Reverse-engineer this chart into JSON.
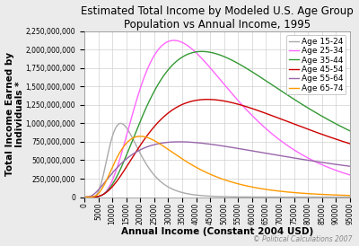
{
  "title_line1": "Estimated Total Income by Modeled U.S. Age Group",
  "title_line2": "Population vs Annual Income, 1995",
  "xlabel": "Annual Income (Constant 2004 USD)",
  "ylabel": "Total Income Earned by\nIndividuals *",
  "watermark": "© Political Calculations 2007",
  "x_max": 95000,
  "x_ticks": [
    0,
    5000,
    10000,
    15000,
    20000,
    25000,
    30000,
    35000,
    40000,
    45000,
    50000,
    55000,
    60000,
    65000,
    70000,
    75000,
    80000,
    85000,
    90000,
    95000
  ],
  "y_max": 2250000000,
  "y_ticks": [
    0,
    250000000,
    500000000,
    750000000,
    1000000000,
    1250000000,
    1500000000,
    1750000000,
    2000000000,
    2250000000
  ],
  "series": [
    {
      "label": "Age 15-24",
      "color": "#aaaaaa",
      "peak_x": 13000,
      "peak_y": 1000000000,
      "sigma": 0.42
    },
    {
      "label": "Age 25-34",
      "color": "#ff66ff",
      "peak_x": 32000,
      "peak_y": 2125000000,
      "sigma": 0.55
    },
    {
      "label": "Age 35-44",
      "color": "#339933",
      "peak_x": 42000,
      "peak_y": 1975000000,
      "sigma": 0.65
    },
    {
      "label": "Age 45-54",
      "color": "#cc0000",
      "peak_x": 44000,
      "peak_y": 1325000000,
      "sigma": 0.7
    },
    {
      "label": "Age 55-64",
      "color": "#9966aa",
      "peak_x": 34000,
      "peak_y": 750000000,
      "sigma": 0.95
    },
    {
      "label": "Age 65-74",
      "color": "#ff9900",
      "peak_x": 20000,
      "peak_y": 825000000,
      "sigma": 0.58
    }
  ],
  "background_color": "#ebebeb",
  "plot_background": "#ffffff",
  "grid_color": "#d0d0d0",
  "title_fontsize": 8.5,
  "axis_label_fontsize": 7.5,
  "tick_fontsize": 5.5,
  "legend_fontsize": 6.5
}
